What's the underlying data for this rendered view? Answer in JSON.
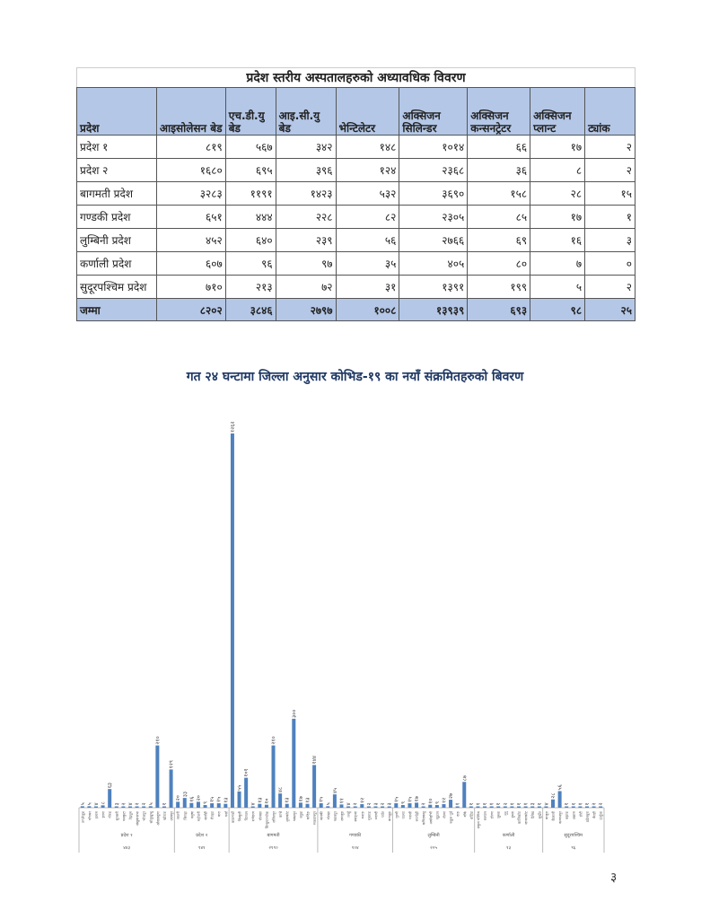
{
  "table": {
    "title": "प्रदेश स्तरीय अस्पतालहरुको अध्यावधिक विवरण",
    "headers": [
      "प्रदेश",
      "आइसोलेसन बेड",
      "एच.डी.यु बेड",
      "आइ.सी.यु बेड",
      "भेन्टिलेटर",
      "अक्सिजन सिलिन्डर",
      "अक्सिजन कन्सनट्रेटर",
      "अक्सिजन प्लान्ट",
      "ट्यांक"
    ],
    "rows": [
      [
        "प्रदेश १",
        "८१९",
        "५६७",
        "३४२",
        "१४८",
        "१०१४",
        "६६",
        "१७",
        "२"
      ],
      [
        "प्रदेश २",
        "१६८०",
        "६९५",
        "३९६",
        "१२४",
        "२३६८",
        "३६",
        "८",
        "२"
      ],
      [
        "बागमती प्रदेश",
        "३२८३",
        "११९१",
        "१४२३",
        "५३२",
        "३६९०",
        "१५८",
        "२८",
        "१५"
      ],
      [
        "गण्डकी प्रदेश",
        "६५१",
        "४४४",
        "२२८",
        "८२",
        "२३०५",
        "८५",
        "१७",
        "१"
      ],
      [
        "लुम्बिनी प्रदेश",
        "४५२",
        "६४०",
        "२३९",
        "५६",
        "२७६६",
        "६९",
        "१६",
        "३"
      ],
      [
        "कर्णाली प्रदेश",
        "६०७",
        "९६",
        "९७",
        "३५",
        "४०५",
        "८०",
        "७",
        "०"
      ],
      [
        "सुदूरपश्चिम प्रदेश",
        "७१०",
        "२१३",
        "७२",
        "३१",
        "१३९१",
        "१९९",
        "५",
        "२"
      ]
    ],
    "total": [
      "जम्मा",
      "८२०२",
      "३८४६",
      "२७९७",
      "१००८",
      "१३९३९",
      "६९३",
      "९८",
      "२५"
    ]
  },
  "page_number": "३",
  "chart_data": {
    "type": "bar",
    "title": "गत २४ घन्टामा जिल्ला अनुसार कोभिड-१९ का नयाँ संक्रमितहरुको बिवरण",
    "color": "#4f81bd",
    "groups": [
      {
        "name": "प्रदेश १",
        "total": 443,
        "districts": [
          "ताप्लेजुङ",
          "पाँचथर",
          "इलाम",
          "झापा",
          "मोरङ",
          "सुनसरी",
          "धनकुटा",
          "तेह्रथुम",
          "संखुवासभा",
          "भोजपुर",
          "सोलुखुम्बु",
          "ओखलढुंगा",
          "खोटाङ",
          "उदयपुर"
        ],
        "values": [
          5,
          5,
          4,
          8,
          63,
          3,
          2,
          4,
          2,
          2,
          5,
          210,
          1,
          129
        ]
      },
      {
        "name": "प्रदेश २",
        "total": 141,
        "districts": [
          "सप्तरी",
          "सिराहा",
          "धनुषा",
          "महोत्तरी",
          "सर्लाही",
          "रौतहट",
          "बारा",
          "पर्सा"
        ],
        "values": [
          20,
          33,
          16,
          20,
          9,
          15,
          15,
          13
        ]
      },
      {
        "name": "बागमती",
        "total": 2190,
        "districts": [
          "काठमाडौं",
          "सिन्धुली",
          "चितवन",
          "रामेछाप",
          "दोलखा",
          "सिन्धुपाल्चोक",
          "ललितपुर",
          "काभ्रे",
          "नुवाकोट",
          "भक्तपुर",
          "रसुवा",
          "धादिङ",
          "मकवानपुर"
        ],
        "values": [
          1262,
          55,
          101,
          4,
          13,
          10,
          210,
          48,
          13,
          300,
          17,
          13,
          144
        ]
      },
      {
        "name": "गण्डकी",
        "total": 104,
        "districts": [
          "कास्की",
          "गोरखा",
          "नवलपुर",
          "लमजुङ",
          "तनहुँ",
          "स्याङ्जा",
          "मनाङ",
          "मुस्ताङ",
          "म्याग्दी",
          "पर्वत",
          "बागलुङ"
        ],
        "values": [
          15,
          5,
          45,
          11,
          4,
          2,
          12,
          2,
          3,
          2,
          3
        ]
      },
      {
        "name": "लुम्बिनी",
        "total": 205,
        "districts": [
          "गुल्मी",
          "पाल्पा",
          "परासी",
          "रुपन्देही",
          "कपिलवस्तु",
          "अर्घाखाँची",
          "प्युठान",
          "रोल्पा",
          "रुकुम पूर्व",
          "दाङ",
          "बाँके",
          "बर्दिया"
        ],
        "values": [
          15,
          9,
          15,
          17,
          2,
          10,
          9,
          12,
          27,
          1,
          87,
          1
        ]
      },
      {
        "name": "कर्णाली",
        "total": 13,
        "districts": [
          "रुकुम पश्चिम",
          "सल्यान",
          "डोल्पा",
          "जुम्ला",
          "मुगु",
          "हुम्ला",
          "कालिकोट",
          "जाजरकोट",
          "दैलेख",
          "सुर्खेत"
        ],
        "values": [
          1,
          1,
          1,
          1,
          2,
          1,
          1,
          1,
          3,
          1
        ]
      },
      {
        "name": "सुदूरपश्चिम",
        "total": 96,
        "districts": [
          "बाजुरा",
          "कैलाली",
          "कञ्चनपुर",
          "बझाङ",
          "अछाम",
          "डोटी",
          "डडेलधुरा",
          "बैतडी",
          "दार्चुला"
        ],
        "values": [
          4,
          28,
          56,
          1,
          1,
          1,
          1,
          2,
          2
        ]
      }
    ]
  }
}
